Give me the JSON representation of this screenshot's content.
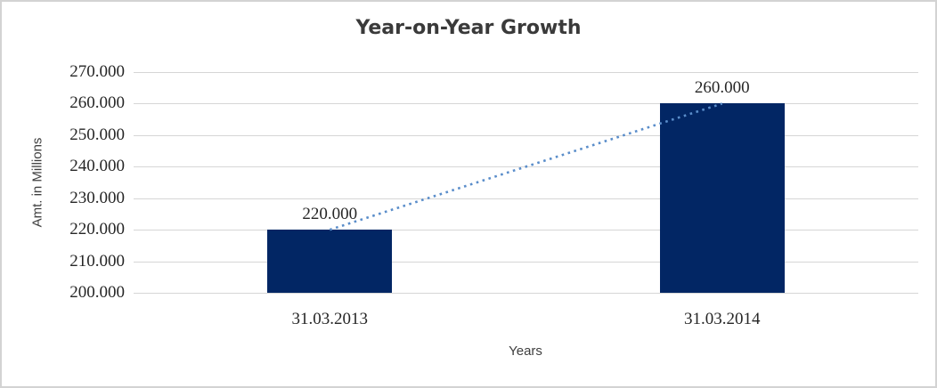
{
  "chart_data": {
    "type": "bar",
    "title": "Year-on-Year Growth",
    "categories": [
      "31.03.2013",
      "31.03.2014"
    ],
    "values": [
      220000,
      260000
    ],
    "value_labels": [
      "220.000",
      "260.000"
    ],
    "xlabel": "Years",
    "ylabel": "Amt. in Millions",
    "ylim": [
      200000,
      270000
    ],
    "ytick_step": 10000,
    "ytick_labels": [
      "270.000",
      "260.000",
      "250.000",
      "240.000",
      "230.000",
      "220.000",
      "210.000",
      "200.000"
    ],
    "grid": true,
    "legend": false,
    "trendline": {
      "style": "dotted",
      "from_value": 220000,
      "to_value": 260000
    }
  },
  "colors": {
    "bar": "#022664",
    "trendline": "#5a8dca",
    "gridline": "#d6d6d6",
    "title_text": "#3a3a3a",
    "axis_title_text": "#3f3f3f",
    "label_text": "#262626",
    "frame_border": "#d3d3d3",
    "background": "#ffffff"
  }
}
